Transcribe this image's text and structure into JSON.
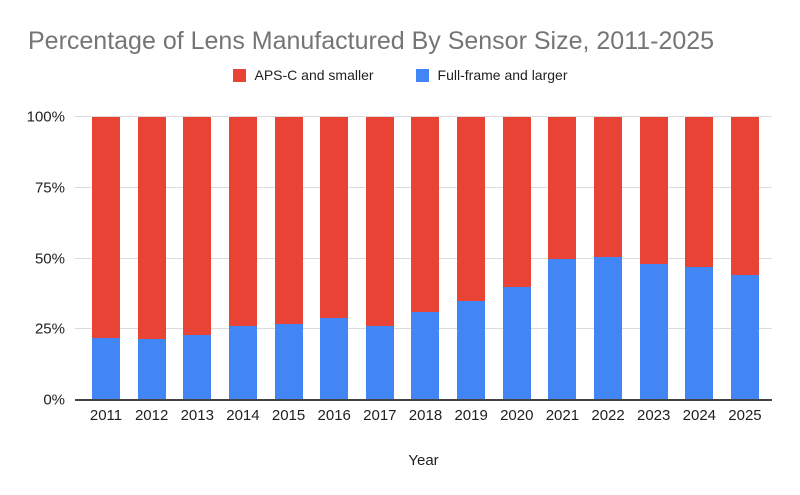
{
  "chart": {
    "title": "Percentage of Lens Manufactured By Sensor Size, 2011-2025",
    "x_axis_title": "Year",
    "legend": [
      {
        "label": "APS-C and smaller",
        "color": "#e94335"
      },
      {
        "label": "Full-frame and larger",
        "color": "#4285f4"
      }
    ]
  },
  "chart_data": {
    "type": "bar",
    "stacked": true,
    "title": "Percentage of Lens Manufactured By Sensor Size, 2011-2025",
    "xlabel": "Year",
    "ylabel": "",
    "ylim": [
      0,
      100
    ],
    "grid": true,
    "legend_position": "top",
    "categories": [
      "2011",
      "2012",
      "2013",
      "2014",
      "2015",
      "2016",
      "2017",
      "2018",
      "2019",
      "2020",
      "2021",
      "2022",
      "2023",
      "2024",
      "2025"
    ],
    "y_ticks": [
      {
        "label": "0%",
        "value": 0
      },
      {
        "label": "25%",
        "value": 25
      },
      {
        "label": "50%",
        "value": 50
      },
      {
        "label": "75%",
        "value": 75
      },
      {
        "label": "100%",
        "value": 100
      }
    ],
    "series": [
      {
        "name": "APS-C and smaller",
        "color": "#e94335",
        "values": [
          78,
          78.5,
          77,
          74,
          73,
          71,
          74,
          69,
          65,
          60,
          50,
          49.5,
          52,
          53,
          56
        ]
      },
      {
        "name": "Full-frame and larger",
        "color": "#4285f4",
        "values": [
          22,
          21.5,
          23,
          26,
          27,
          29,
          26,
          31,
          35,
          40,
          50,
          50.5,
          48,
          47,
          44
        ]
      }
    ]
  }
}
